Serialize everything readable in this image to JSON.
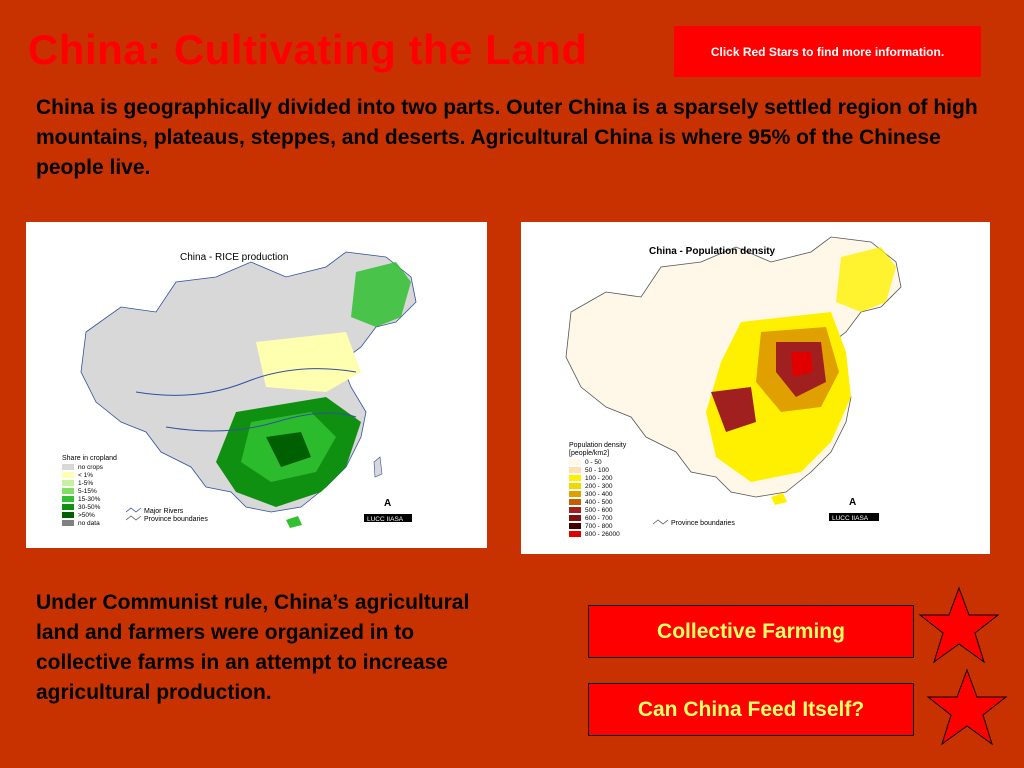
{
  "title": "China:  Cultivating the Land",
  "hint": "Click Red Stars to find more information.",
  "intro": "China is geographically divided into two parts. Outer China is a sparsely settled region of high mountains, plateaus, steppes, and deserts. Agricultural China is where 95% of the Chinese people live.",
  "rice_map": {
    "title": "China - RICE production",
    "legend_title": "Share in cropland",
    "legend": [
      {
        "label": "no crops",
        "color": "#d8d8d8"
      },
      {
        "label": "< 1%",
        "color": "#ffffb0"
      },
      {
        "label": "1-5%",
        "color": "#c8f0a0"
      },
      {
        "label": "5-15%",
        "color": "#80e060"
      },
      {
        "label": "15-30%",
        "color": "#30c030"
      },
      {
        "label": "30-50%",
        "color": "#109010"
      },
      {
        "label": ">50%",
        "color": "#005f00"
      },
      {
        "label": "no data",
        "color": "#808080"
      }
    ],
    "line_legend": [
      "Major Rivers",
      "Province boundaries"
    ],
    "credit": "LUCC IIASA"
  },
  "pop_map": {
    "title": "China - Population density",
    "legend_title": "Population density",
    "legend_unit": "[people/km2]",
    "legend": [
      {
        "label": "0 - 50",
        "color": "#fff8e8"
      },
      {
        "label": "50 - 100",
        "color": "#ffe0b0"
      },
      {
        "label": "100 - 200",
        "color": "#fff000"
      },
      {
        "label": "200 - 300",
        "color": "#f0d800"
      },
      {
        "label": "300 - 400",
        "color": "#e0a000"
      },
      {
        "label": "400 - 500",
        "color": "#c06000"
      },
      {
        "label": "500 - 600",
        "color": "#a02020"
      },
      {
        "label": "600 - 700",
        "color": "#801010"
      },
      {
        "label": "700 - 800",
        "color": "#400000"
      },
      {
        "label": "800 - 26000",
        "color": "#e00000"
      }
    ],
    "line_legend": [
      "Province boundaries"
    ],
    "credit": "LUCC IIASA"
  },
  "bottom_text": "Under Communist rule, China’s agricultural land and farmers were organized in to collective farms in an attempt to increase agricultural production.",
  "buttons": {
    "collective": "Collective Farming",
    "feed": "Can China Feed Itself?"
  },
  "colors": {
    "background": "#c83200",
    "accent": "#ff0000",
    "button_text": "#ffff66"
  }
}
